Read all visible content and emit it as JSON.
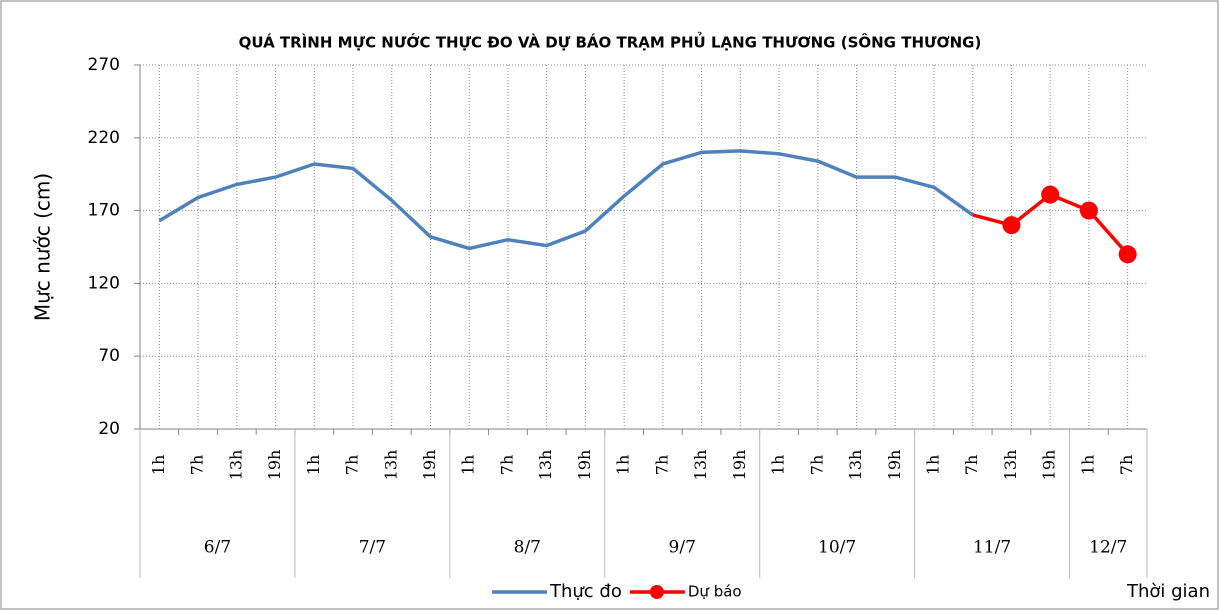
{
  "chart_data": {
    "type": "line",
    "title": "QUÁ TRÌNH MỰC NƯỚC THỰC ĐO VÀ DỰ BÁO TRẠM PHỦ LẠNG THƯƠNG (SÔNG THƯƠNG)",
    "y_label": "Mực nước (cm)",
    "x_label": "Thời gian",
    "categories": [
      "1h",
      "7h",
      "13h",
      "19h",
      "1h",
      "7h",
      "13h",
      "19h",
      "1h",
      "7h",
      "13h",
      "19h",
      "1h",
      "7h",
      "13h",
      "19h",
      "1h",
      "7h",
      "13h",
      "19h",
      "1h",
      "7h",
      "13h",
      "19h",
      "1h",
      "7h"
    ],
    "groups": [
      {
        "label": "6/7",
        "size": 4
      },
      {
        "label": "7/7",
        "size": 4
      },
      {
        "label": "8/7",
        "size": 4
      },
      {
        "label": "9/7",
        "size": 4
      },
      {
        "label": "10/7",
        "size": 4
      },
      {
        "label": "11/7",
        "size": 4
      },
      {
        "label": "12/7",
        "size": 2
      }
    ],
    "series": [
      {
        "name": "Thực đo",
        "color": "#4f81bd",
        "marker": false,
        "values": [
          163,
          179,
          188,
          193,
          202,
          199,
          177,
          152,
          144,
          150,
          146,
          156,
          180,
          202,
          210,
          211,
          209,
          204,
          193,
          193,
          186,
          167,
          null,
          null,
          null,
          null
        ]
      },
      {
        "name": "Dự báo",
        "color": "#ff0000",
        "marker": true,
        "values": [
          null,
          null,
          null,
          null,
          null,
          null,
          null,
          null,
          null,
          null,
          null,
          null,
          null,
          null,
          null,
          null,
          null,
          null,
          null,
          null,
          null,
          167,
          160,
          181,
          170,
          140
        ]
      }
    ],
    "ylim": [
      20,
      270
    ],
    "yticks": [
      20,
      70,
      120,
      170,
      220,
      270
    ],
    "grid": true
  }
}
